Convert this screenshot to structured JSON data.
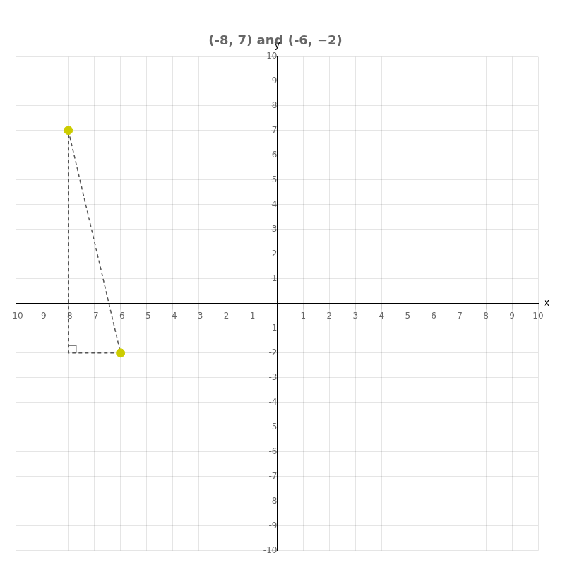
{
  "chart_data": {
    "type": "scatter",
    "title": "(-8, 7) and (-6, −2)",
    "xlabel": "x",
    "ylabel": "y",
    "xlim": [
      -10,
      10
    ],
    "ylim": [
      -10,
      10
    ],
    "xticks": [
      -10,
      -9,
      -8,
      -7,
      -6,
      -5,
      -4,
      -3,
      -2,
      -1,
      {
        "value": 0,
        "label": null
      },
      1,
      2,
      3,
      4,
      5,
      6,
      7,
      8,
      9,
      10
    ],
    "yticks": [
      -10,
      -9,
      -8,
      -7,
      -6,
      -5,
      -4,
      -3,
      -2,
      -1,
      {
        "value": 0,
        "label": null
      },
      1,
      2,
      3,
      4,
      5,
      6,
      7,
      8,
      9,
      10
    ],
    "grid": true,
    "series": [
      {
        "type": "line",
        "line_style": "dashed",
        "color": "#555555",
        "x": [
          -8,
          -6,
          -8,
          -8
        ],
        "values": [
          7,
          -2,
          -2,
          7
        ]
      },
      {
        "type": "line",
        "line_style": "solid",
        "color": "#555555",
        "x": [
          -8,
          -7.7,
          -7.7
        ],
        "values": [
          -1.7,
          -1.7,
          -2
        ]
      },
      {
        "type": "scatter",
        "marker": "circle",
        "color": "#cccc00",
        "x": [
          -8,
          -6
        ],
        "values": [
          7,
          -2
        ]
      }
    ]
  }
}
